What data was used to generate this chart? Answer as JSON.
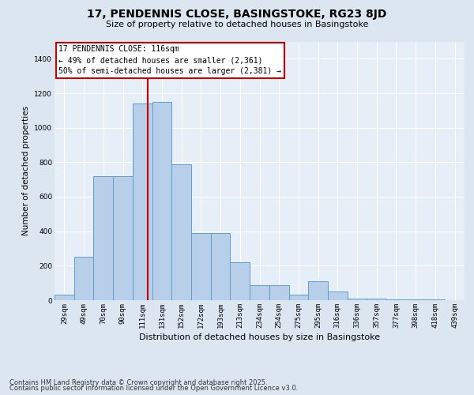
{
  "title1": "17, PENDENNIS CLOSE, BASINGSTOKE, RG23 8JD",
  "title2": "Size of property relative to detached houses in Basingstoke",
  "xlabel": "Distribution of detached houses by size in Basingstoke",
  "ylabel": "Number of detached properties",
  "categories": [
    "29sqm",
    "49sqm",
    "70sqm",
    "90sqm",
    "111sqm",
    "131sqm",
    "152sqm",
    "172sqm",
    "193sqm",
    "213sqm",
    "234sqm",
    "254sqm",
    "275sqm",
    "295sqm",
    "316sqm",
    "336sqm",
    "357sqm",
    "377sqm",
    "398sqm",
    "418sqm",
    "439sqm"
  ],
  "values": [
    30,
    250,
    720,
    720,
    1140,
    1150,
    790,
    390,
    390,
    220,
    85,
    85,
    30,
    110,
    50,
    10,
    10,
    5,
    5,
    5,
    2
  ],
  "bar_color": "#b8cfea",
  "bar_edge_color": "#5f9ecf",
  "vline_x": 4.78,
  "vline_color": "#cc0000",
  "annotation_text": "17 PENDENNIS CLOSE: 116sqm\n← 49% of detached houses are smaller (2,361)\n50% of semi-detached houses are larger (2,381) →",
  "ylim": [
    0,
    1500
  ],
  "yticks": [
    0,
    200,
    400,
    600,
    800,
    1000,
    1200,
    1400
  ],
  "footer1": "Contains HM Land Registry data © Crown copyright and database right 2025.",
  "footer2": "Contains public sector information licensed under the Open Government Licence v3.0.",
  "bg_color": "#dce6f0",
  "plot_bg_color": "#e6eef7",
  "grid_color": "#ffffff",
  "title_fontsize": 10,
  "subtitle_fontsize": 8,
  "ylabel_fontsize": 7.5,
  "xlabel_fontsize": 8,
  "tick_fontsize": 6.5,
  "footer_fontsize": 6,
  "annot_fontsize": 7
}
